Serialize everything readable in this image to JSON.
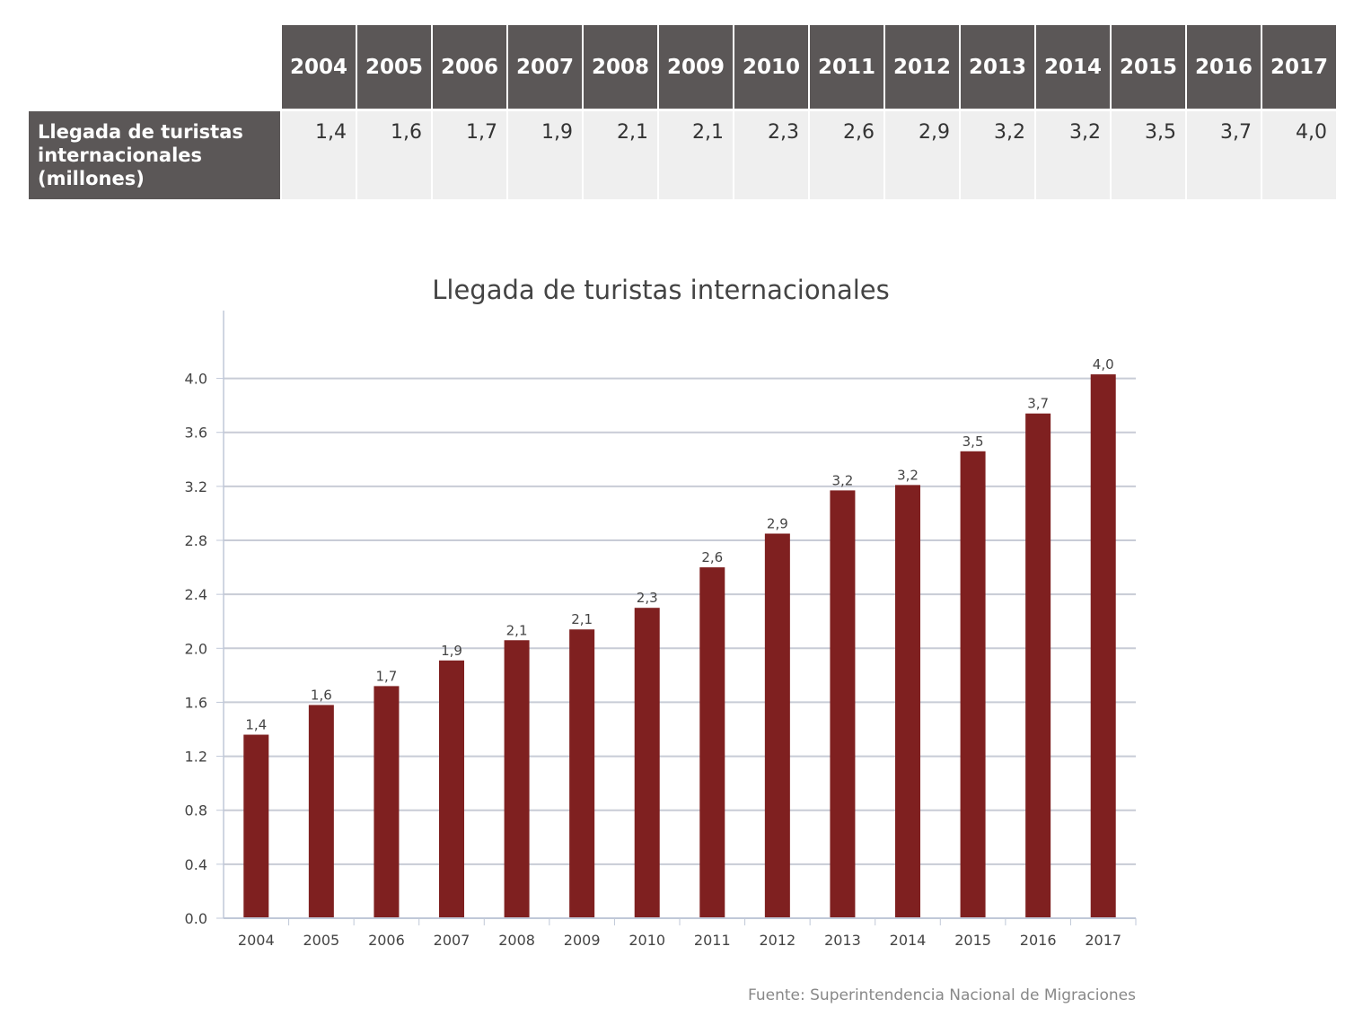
{
  "table": {
    "years": [
      "2004",
      "2005",
      "2006",
      "2007",
      "2008",
      "2009",
      "2010",
      "2011",
      "2012",
      "2013",
      "2014",
      "2015",
      "2016",
      "2017"
    ],
    "row_label_lines": [
      "Llegada de turistas",
      "internacionales",
      "(millones)"
    ],
    "values": [
      "1,4",
      "1,6",
      "1,7",
      "1,9",
      "2,1",
      "2,1",
      "2,3",
      "2,6",
      "2,9",
      "3,2",
      "3,2",
      "3,5",
      "3,7",
      "4,0"
    ]
  },
  "chart_data": {
    "type": "bar",
    "title": "Llegada de turistas internacionales",
    "categories": [
      "2004",
      "2005",
      "2006",
      "2007",
      "2008",
      "2009",
      "2010",
      "2011",
      "2012",
      "2013",
      "2014",
      "2015",
      "2016",
      "2017"
    ],
    "values": [
      1.36,
      1.58,
      1.72,
      1.91,
      2.06,
      2.14,
      2.3,
      2.6,
      2.85,
      3.17,
      3.21,
      3.46,
      3.74,
      4.03
    ],
    "data_labels": [
      "1,4",
      "1,6",
      "1,7",
      "1,9",
      "2,1",
      "2,1",
      "2,3",
      "2,6",
      "2,9",
      "3,2",
      "3,2",
      "3,5",
      "3,7",
      "4,0"
    ],
    "yticks": [
      "0.0",
      "0.4",
      "0.8",
      "1.2",
      "1.6",
      "2.0",
      "2.4",
      "2.8",
      "3.2",
      "3.6",
      "4.0"
    ],
    "ylim": [
      0,
      4.25
    ],
    "grid": true,
    "bar_color": "#7f2020",
    "source": "Fuente: Superintendencia Nacional de Migraciones"
  },
  "colors": {
    "header_bg": "#5b5757",
    "cell_bg": "#efefef",
    "grid": "#c8ccd6",
    "axis": "#c0c8d8"
  }
}
